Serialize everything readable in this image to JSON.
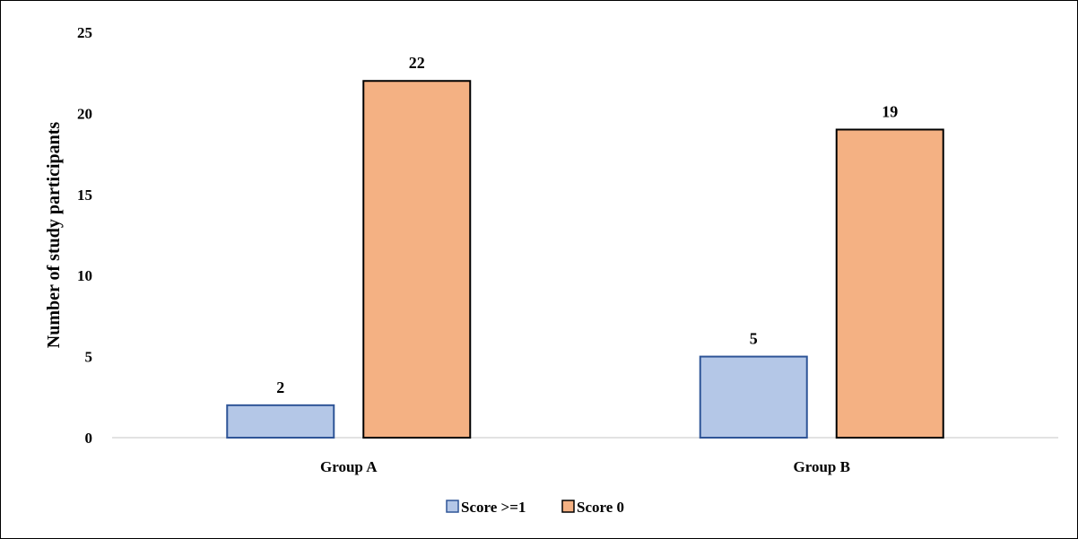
{
  "chart_data": {
    "type": "bar",
    "title": "",
    "xlabel": "",
    "ylabel": "Number of study participants",
    "categories": [
      "Group A",
      "Group B"
    ],
    "series": [
      {
        "name": "Score >=1",
        "values": [
          2,
          5
        ],
        "color": "#b4c7e7",
        "stroke": "#2f5597"
      },
      {
        "name": "Score 0",
        "values": [
          22,
          19
        ],
        "color": "#f4b183",
        "stroke": "#000000"
      }
    ],
    "ylim": [
      0,
      25
    ],
    "yticks": [
      0,
      5,
      10,
      15,
      20,
      25
    ],
    "grid": false,
    "legend": "bottom"
  }
}
